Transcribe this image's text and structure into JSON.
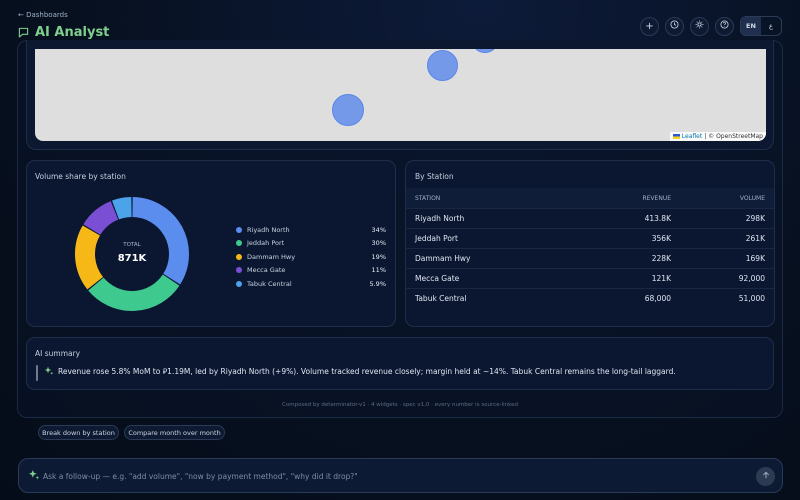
{
  "header": {
    "back_link": "← Dashboards",
    "title": "AI Analyst",
    "actions": [
      {
        "name": "plus-icon",
        "glyph": "+"
      },
      {
        "name": "history-icon",
        "glyph": "◷"
      },
      {
        "name": "theme-icon",
        "glyph": "☼"
      },
      {
        "name": "help-icon",
        "glyph": "?"
      }
    ],
    "lang_active": "EN",
    "lang_other": "ع"
  },
  "map": {
    "attribution_leaflet": "Leaflet",
    "attribution_rest": " | © OpenStreetMap",
    "bubble_color": "#5082eb"
  },
  "donut": {
    "title": "Volume share by station",
    "center_label": "TOTAL",
    "center_value": "871K",
    "slices": [
      {
        "name": "Riyadh North",
        "pct": "34%",
        "value": 34.2,
        "color": "#5b8def"
      },
      {
        "name": "Jeddah Port",
        "pct": "30%",
        "value": 30.0,
        "color": "#3ec98f"
      },
      {
        "name": "Dammam Hwy",
        "pct": "19%",
        "value": 19.4,
        "color": "#f6b816"
      },
      {
        "name": "Mecca Gate",
        "pct": "11%",
        "value": 10.6,
        "color": "#7a4fd4"
      },
      {
        "name": "Tabuk Central",
        "pct": "5.9%",
        "value": 5.9,
        "color": "#4ba3ea"
      }
    ]
  },
  "chart_data": {
    "type": "pie",
    "title": "Volume share by station",
    "categories": [
      "Riyadh North",
      "Jeddah Port",
      "Dammam Hwy",
      "Mecca Gate",
      "Tabuk Central"
    ],
    "values": [
      34,
      30,
      19,
      11,
      5.9
    ],
    "total_label": "TOTAL",
    "total": "871K",
    "legend_position": "right"
  },
  "table": {
    "title": "By Station",
    "headers": {
      "station": "STATION",
      "revenue": "REVENUE",
      "volume": "VOLUME"
    },
    "rows": [
      {
        "station": "Riyadh North",
        "revenue": "413.8K",
        "volume": "298K"
      },
      {
        "station": "Jeddah Port",
        "revenue": "356K",
        "volume": "261K"
      },
      {
        "station": "Dammam Hwy",
        "revenue": "228K",
        "volume": "169K"
      },
      {
        "station": "Mecca Gate",
        "revenue": "121K",
        "volume": "92,000"
      },
      {
        "station": "Tabuk Central",
        "revenue": "68,000",
        "volume": "51,000"
      }
    ]
  },
  "summary": {
    "title": "AI summary",
    "text": "Revenue rose 5.8% MoM to ⃁1.19M, led by Riyadh North (+9%). Volume tracked revenue closely; margin held at ~14%. Tabuk Central remains the long-tail laggard."
  },
  "footer_note": "Composed by determinator-v1 · 4 widgets · spec v1.0 · every number is source-linked",
  "suggestions": [
    "Break down by station",
    "Compare month over month"
  ],
  "ask": {
    "placeholder": "Ask a follow-up — e.g. \"add volume\", \"now by payment method\", \"why did it drop?\""
  },
  "colors": {
    "accent": "#7fcf8e",
    "background": "#07101f"
  }
}
